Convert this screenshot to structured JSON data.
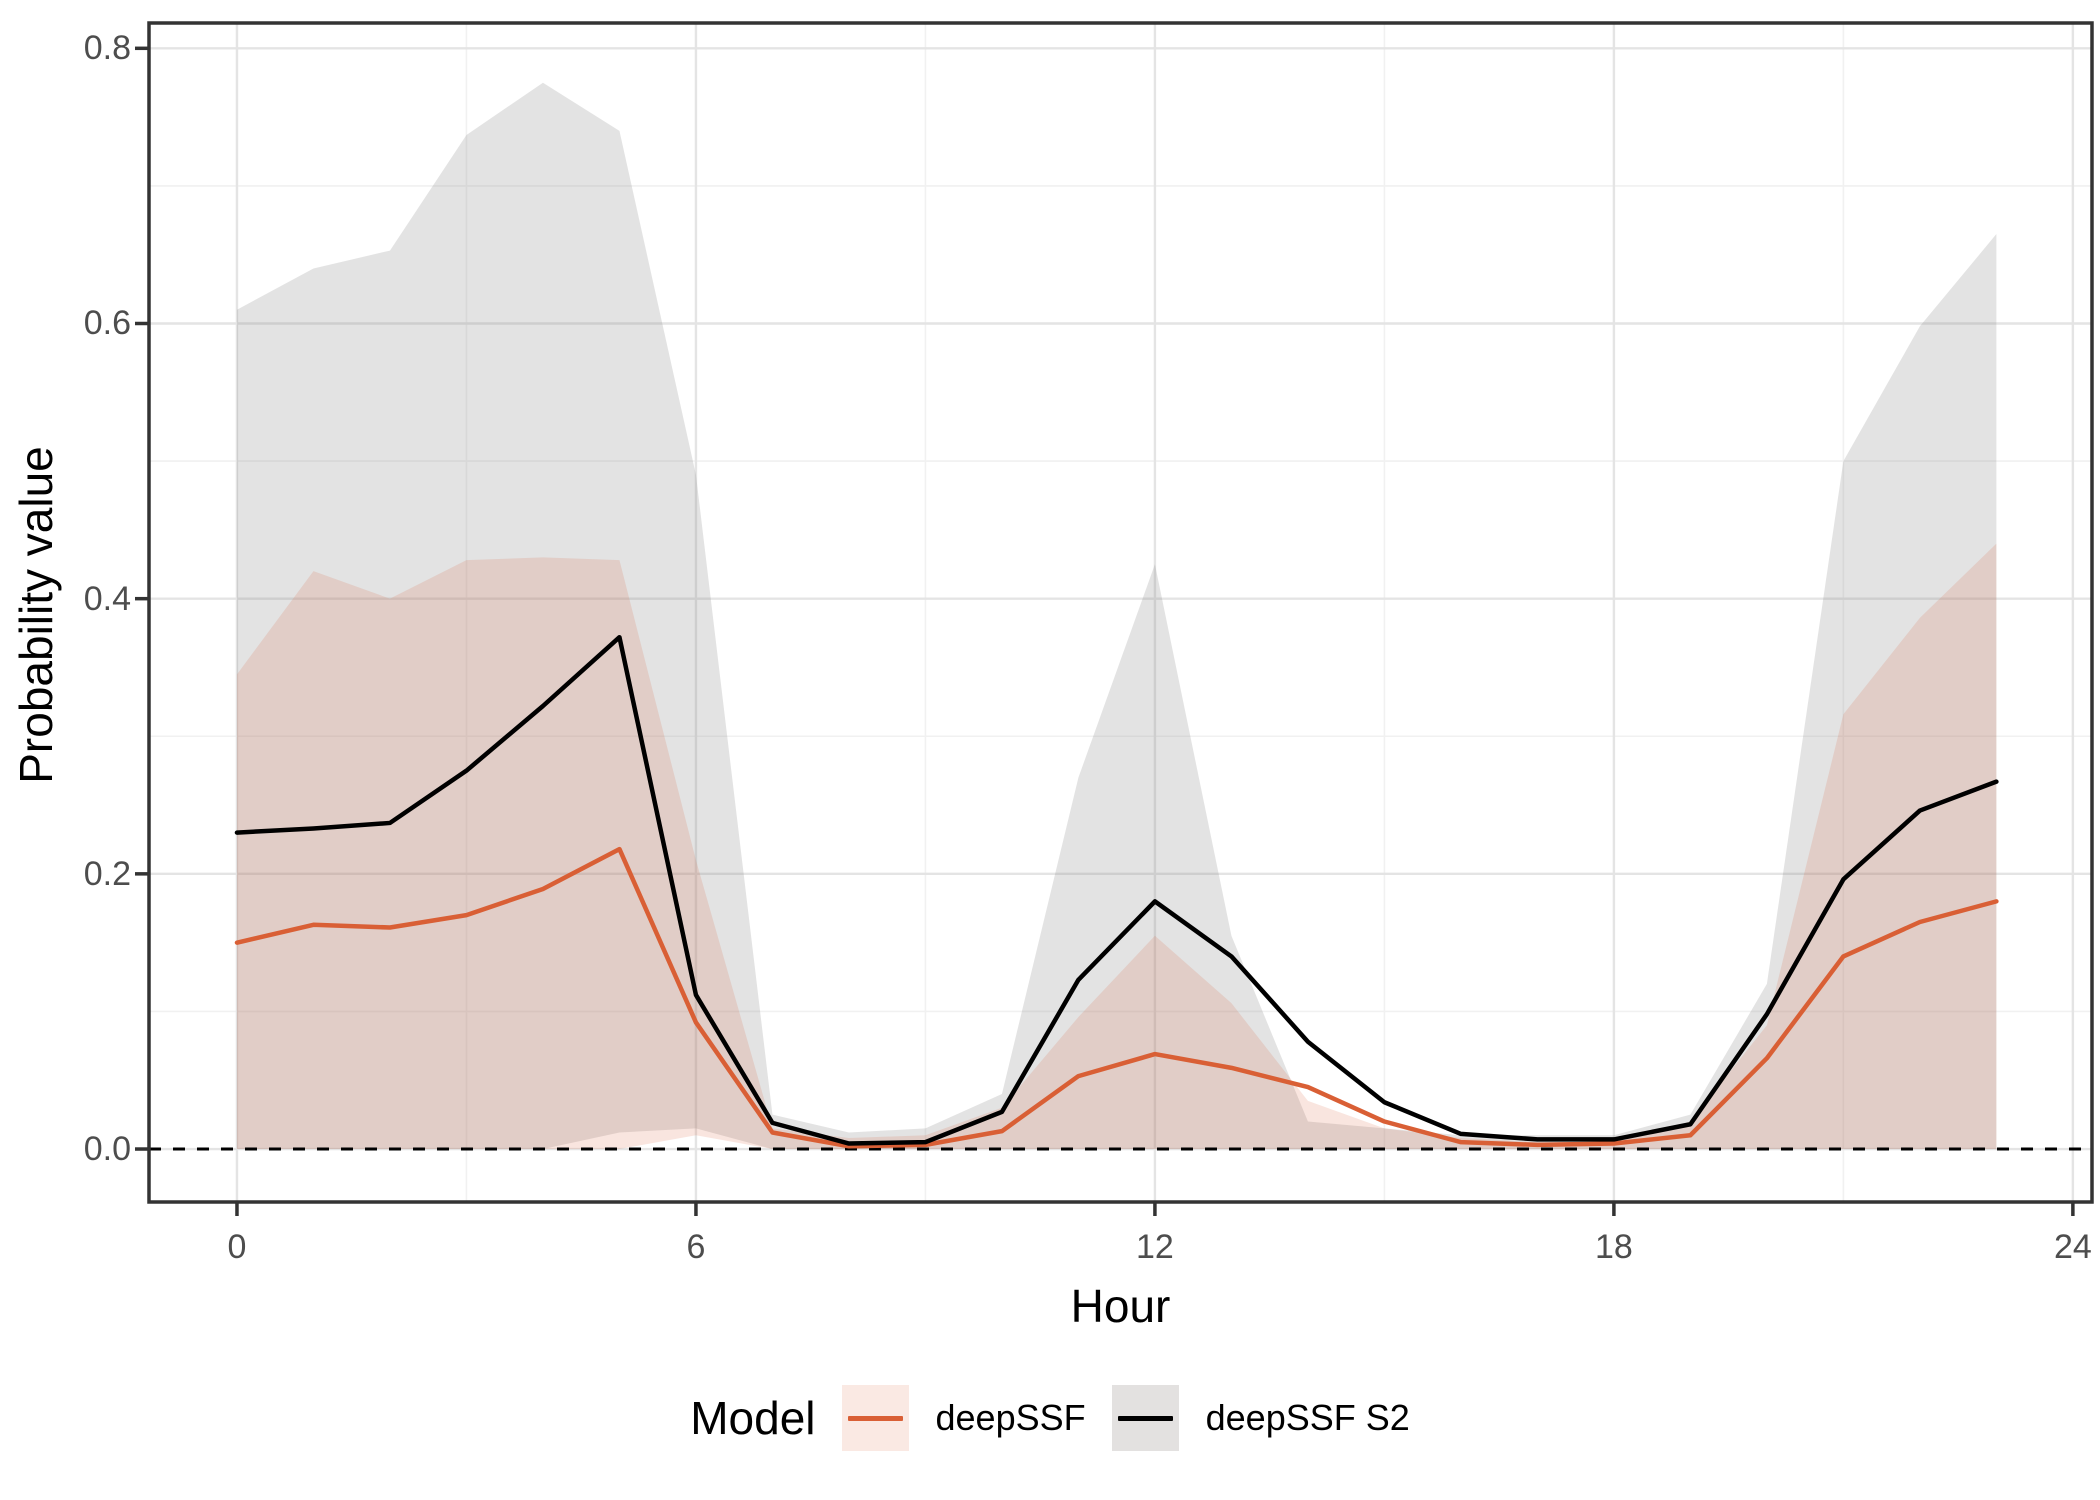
{
  "chart_data": {
    "type": "line",
    "title": "",
    "xlabel": "Hour",
    "ylabel": "Probability value",
    "x": [
      0,
      1,
      2,
      3,
      4,
      5,
      6,
      7,
      8,
      9,
      10,
      11,
      12,
      13,
      14,
      15,
      16,
      17,
      18,
      19,
      20,
      21,
      22,
      23
    ],
    "xlim": [
      -1.15,
      24.25
    ],
    "ylim": [
      -0.0385,
      0.8184
    ],
    "xticks": [
      "0",
      "6",
      "12",
      "18",
      "24"
    ],
    "xtick_values": [
      0,
      6,
      12,
      18,
      24
    ],
    "xticks_minor": [
      3,
      9,
      15,
      21
    ],
    "yticks": [
      "0.0",
      "0.2",
      "0.4",
      "0.6",
      "0.8"
    ],
    "ytick_values": [
      0,
      0.2,
      0.4,
      0.6,
      0.8
    ],
    "yticks_minor": [
      0.1,
      0.3,
      0.5,
      0.7
    ],
    "grid": true,
    "reference_line": {
      "y": 0,
      "style": "dashed",
      "color": "#000000"
    },
    "legend": {
      "title": "Model",
      "position": "bottom"
    },
    "series": [
      {
        "name": "deepSSF",
        "color": "#D95F35",
        "ribbon_fill": "rgba(217,95,53,0.16)",
        "key_fill": "#FAE9E3",
        "mean": [
          0.15,
          0.163,
          0.161,
          0.17,
          0.189,
          0.218,
          0.092,
          0.012,
          0.002,
          0.003,
          0.013,
          0.053,
          0.069,
          0.059,
          0.045,
          0.02,
          0.005,
          0.003,
          0.004,
          0.01,
          0.066,
          0.14,
          0.165,
          0.18
        ],
        "upper": [
          0.345,
          0.42,
          0.4,
          0.428,
          0.43,
          0.428,
          0.21,
          0.015,
          0.008,
          0.01,
          0.03,
          0.096,
          0.155,
          0.106,
          0.035,
          0.015,
          0.008,
          0.005,
          0.005,
          0.02,
          0.09,
          0.316,
          0.386,
          0.44
        ],
        "lower": [
          0,
          0,
          0,
          0,
          0,
          0,
          0.01,
          0,
          0,
          0,
          0,
          0,
          0,
          0,
          0,
          0,
          0,
          0,
          0,
          0,
          0,
          0,
          0,
          0
        ]
      },
      {
        "name": "deepSSF S2",
        "color": "#000000",
        "ribbon_fill": "rgba(128,128,128,0.22)",
        "key_fill": "#E3E1E0",
        "mean": [
          0.23,
          0.233,
          0.237,
          0.275,
          0.322,
          0.372,
          0.112,
          0.019,
          0.004,
          0.005,
          0.027,
          0.123,
          0.18,
          0.14,
          0.078,
          0.034,
          0.011,
          0.007,
          0.007,
          0.018,
          0.098,
          0.196,
          0.246,
          0.267
        ],
        "upper": [
          0.61,
          0.64,
          0.653,
          0.737,
          0.775,
          0.74,
          0.49,
          0.025,
          0.012,
          0.015,
          0.04,
          0.27,
          0.425,
          0.155,
          0.02,
          0.015,
          0.01,
          0.01,
          0.01,
          0.025,
          0.12,
          0.5,
          0.598,
          0.665
        ],
        "lower": [
          0,
          0,
          0,
          0,
          0,
          0.012,
          0.015,
          0,
          0,
          0,
          0,
          0,
          0,
          0,
          0,
          0,
          0,
          0,
          0,
          0,
          0,
          0,
          0,
          0
        ]
      }
    ],
    "style": {
      "panel_border_color": "#333333",
      "grid_major_color": "#E4E4E4",
      "grid_minor_color": "#F1F1F1",
      "tick_mark_color": "#333333",
      "tick_label_color": "#4D4D4D"
    }
  }
}
